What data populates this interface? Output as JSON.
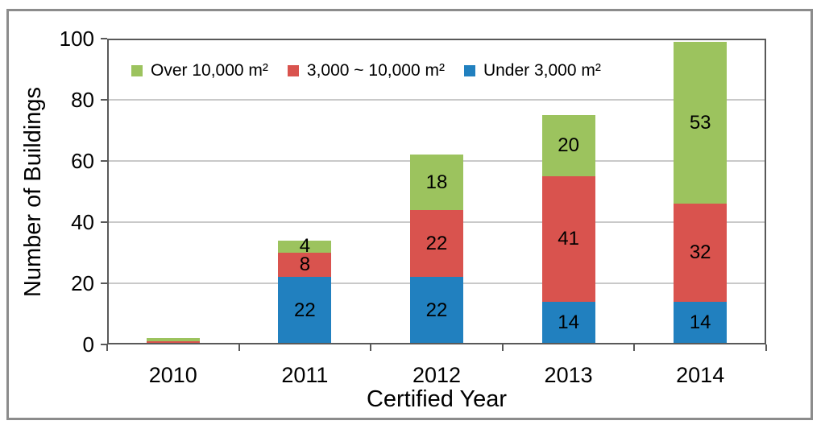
{
  "chart_data": {
    "type": "bar",
    "stacked": true,
    "title": "",
    "xlabel": "Certified Year",
    "ylabel": "Number of Buildings",
    "categories": [
      "2010",
      "2011",
      "2012",
      "2013",
      "2014"
    ],
    "series": [
      {
        "name": "Under 3,000 m²",
        "color": "#2180BF",
        "values": [
          0,
          22,
          22,
          14,
          14
        ]
      },
      {
        "name": "3,000 ~ 10,000 m²",
        "color": "#D9534E",
        "values": [
          1,
          8,
          22,
          41,
          32
        ]
      },
      {
        "name": "Over 10,000 m²",
        "color": "#9CC35E",
        "values": [
          1,
          4,
          18,
          20,
          53
        ]
      }
    ],
    "totals": [
      2,
      34,
      62,
      75,
      99
    ],
    "data_labels_shown": true,
    "legend_order": [
      "Over 10,000 m²",
      "3,000 ~ 10,000 m²",
      "Under 3,000 m²"
    ],
    "legend_position": "inside-top-left",
    "y_axis": {
      "min": 0,
      "max": 100,
      "step": 20,
      "ticks": [
        0,
        20,
        40,
        60,
        80,
        100
      ]
    },
    "x_axis": {
      "tick_marks": "category-boundaries"
    },
    "grid": true
  }
}
